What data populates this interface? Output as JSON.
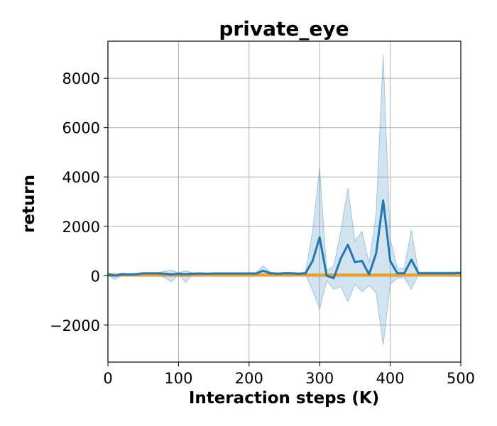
{
  "chart_data": {
    "type": "line",
    "title": "private_eye",
    "xlabel": "Interaction steps (K)",
    "ylabel": "return",
    "xlim": [
      0,
      500
    ],
    "ylim": [
      -3500,
      9500
    ],
    "xticks": [
      0,
      100,
      200,
      300,
      400,
      500
    ],
    "yticks": [
      -2000,
      0,
      2000,
      4000,
      6000,
      8000
    ],
    "grid": true,
    "legend": "none",
    "colors": {
      "main_line": "#1f77b4",
      "band": "#1f77b4",
      "orange_line": "#f0a020",
      "purple_line": "#7a3d8a"
    },
    "series": [
      {
        "x": [
          0,
          10,
          20,
          30,
          40,
          50,
          60,
          70,
          80,
          90,
          100,
          110,
          120,
          130,
          140,
          150,
          160,
          170,
          180,
          190,
          200,
          210,
          220,
          230,
          240,
          250,
          260,
          270,
          280,
          290,
          300,
          310,
          320,
          330,
          340,
          350,
          360,
          370,
          380,
          390,
          400,
          410,
          420,
          430,
          440,
          450,
          460,
          470,
          480,
          490,
          500
        ],
        "y": [
          50,
          0,
          60,
          50,
          60,
          100,
          100,
          100,
          80,
          50,
          80,
          60,
          80,
          90,
          80,
          90,
          90,
          90,
          90,
          90,
          90,
          90,
          200,
          100,
          80,
          100,
          100,
          80,
          100,
          600,
          1550,
          0,
          -100,
          700,
          1250,
          550,
          600,
          50,
          900,
          3050,
          600,
          100,
          100,
          650,
          100,
          100,
          100,
          100,
          100,
          100,
          120
        ],
        "upper": [
          100,
          80,
          100,
          80,
          100,
          120,
          120,
          120,
          180,
          220,
          120,
          200,
          120,
          110,
          100,
          110,
          110,
          110,
          110,
          110,
          110,
          120,
          400,
          150,
          120,
          140,
          140,
          120,
          150,
          1800,
          4350,
          200,
          400,
          1800,
          3550,
          1400,
          1800,
          500,
          2500,
          8950,
          1500,
          300,
          300,
          1850,
          150,
          150,
          150,
          150,
          150,
          150,
          150
        ],
        "lower": [
          0,
          -150,
          20,
          20,
          30,
          80,
          80,
          80,
          -80,
          -250,
          40,
          -280,
          40,
          70,
          60,
          70,
          70,
          70,
          70,
          70,
          70,
          60,
          0,
          50,
          40,
          60,
          60,
          40,
          50,
          -600,
          -1350,
          -200,
          -550,
          -450,
          -1050,
          -350,
          -650,
          -400,
          -700,
          -2800,
          -350,
          -100,
          -100,
          -550,
          50,
          50,
          50,
          50,
          50,
          50,
          80
        ]
      },
      {
        "x": [
          0,
          500
        ],
        "y": [
          30,
          30
        ]
      },
      {
        "x": [
          0,
          500
        ],
        "y": [
          -10,
          -10
        ]
      }
    ]
  }
}
